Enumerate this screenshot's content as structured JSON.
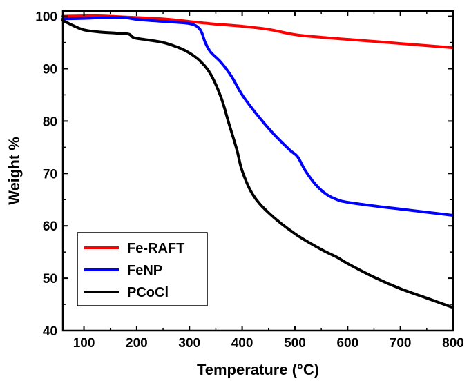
{
  "chart_data": {
    "type": "line",
    "xlabel": "Temperature (°C)",
    "ylabel": "Weight %",
    "xlim": [
      60,
      800
    ],
    "ylim": [
      40,
      101
    ],
    "x_ticks": [
      100,
      200,
      300,
      400,
      500,
      600,
      700,
      800
    ],
    "y_ticks": [
      40,
      50,
      60,
      70,
      80,
      90,
      100
    ],
    "grid": false,
    "legend_position": "bottom-left",
    "series": [
      {
        "name": "Fe-RAFT",
        "color": "#ff0000",
        "x": [
          60,
          120,
          170,
          250,
          300,
          350,
          400,
          450,
          500,
          550,
          600,
          650,
          700,
          750,
          800
        ],
        "y": [
          100.0,
          100.1,
          99.9,
          99.5,
          99.0,
          98.5,
          98.1,
          97.5,
          96.5,
          96.0,
          95.6,
          95.2,
          94.8,
          94.4,
          94.0
        ]
      },
      {
        "name": "FeNP",
        "color": "#0000ff",
        "x": [
          60,
          100,
          170,
          200,
          250,
          300,
          320,
          330,
          340,
          360,
          380,
          400,
          430,
          460,
          490,
          505,
          520,
          540,
          560,
          580,
          600,
          650,
          700,
          750,
          800
        ],
        "y": [
          99.5,
          99.6,
          99.8,
          99.4,
          99.0,
          98.6,
          97.5,
          95.0,
          93.2,
          91.2,
          88.5,
          85.0,
          81.0,
          77.5,
          74.5,
          73.2,
          70.5,
          67.8,
          66.0,
          65.0,
          64.5,
          63.8,
          63.2,
          62.6,
          62.0
        ]
      },
      {
        "name": "PCoCl",
        "color": "#000000",
        "x": [
          60,
          80,
          100,
          130,
          160,
          185,
          195,
          220,
          250,
          280,
          300,
          320,
          340,
          360,
          375,
          390,
          400,
          420,
          450,
          500,
          550,
          580,
          600,
          650,
          700,
          750,
          800
        ],
        "y": [
          99.2,
          98.2,
          97.4,
          97.0,
          96.8,
          96.6,
          95.9,
          95.5,
          95.0,
          94.0,
          93.0,
          91.5,
          89.0,
          84.5,
          79.5,
          74.5,
          70.5,
          66.0,
          62.5,
          58.5,
          55.5,
          54.0,
          52.8,
          50.2,
          48.0,
          46.2,
          44.4
        ]
      }
    ]
  }
}
